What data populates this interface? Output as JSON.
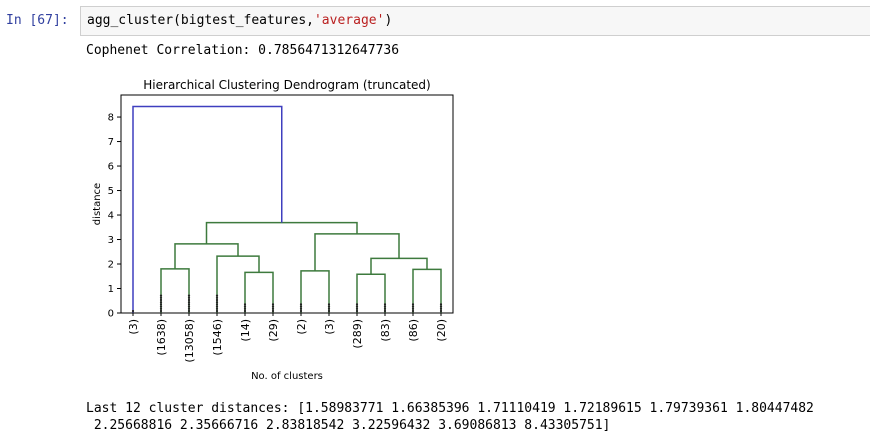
{
  "cell": {
    "prompt": "In [67]:",
    "code_func": "agg_cluster(bigtest_features,",
    "code_arg": "'average'",
    "code_close": ")"
  },
  "output": {
    "cophenet": "Cophenet Correlation: 0.7856471312647736",
    "distances_line1": "Last 12 cluster distances: [1.58983771 1.66385396 1.71110419 1.72189615 1.79739361 1.80447482",
    "distances_line2": " 2.25668816 2.35666716 2.83818542 3.22596432 3.69086813 8.43305751]"
  },
  "chart_data": {
    "type": "dendrogram",
    "title": "Hierarchical Clustering Dendrogram (truncated)",
    "xlabel": "No. of clusters",
    "ylabel": "distance",
    "ylim": [
      0,
      8.9
    ],
    "yticks": [
      0,
      1,
      2,
      3,
      4,
      5,
      6,
      7,
      8
    ],
    "leaves": [
      "(3)",
      "(1638)",
      "(13058)",
      "(1546)",
      "(14)",
      "(29)",
      "(2)",
      "(3)",
      "(289)",
      "(83)",
      "(86)",
      "(20)"
    ],
    "merge_heights": [
      1.8,
      1.66,
      2.32,
      2.82,
      1.72,
      1.58,
      2.23,
      1.78,
      3.23,
      3.69,
      8.43
    ],
    "colors": {
      "top_link": "#3f3fbf",
      "cluster_link": "#3d7a3d",
      "axis": "#000000"
    }
  }
}
